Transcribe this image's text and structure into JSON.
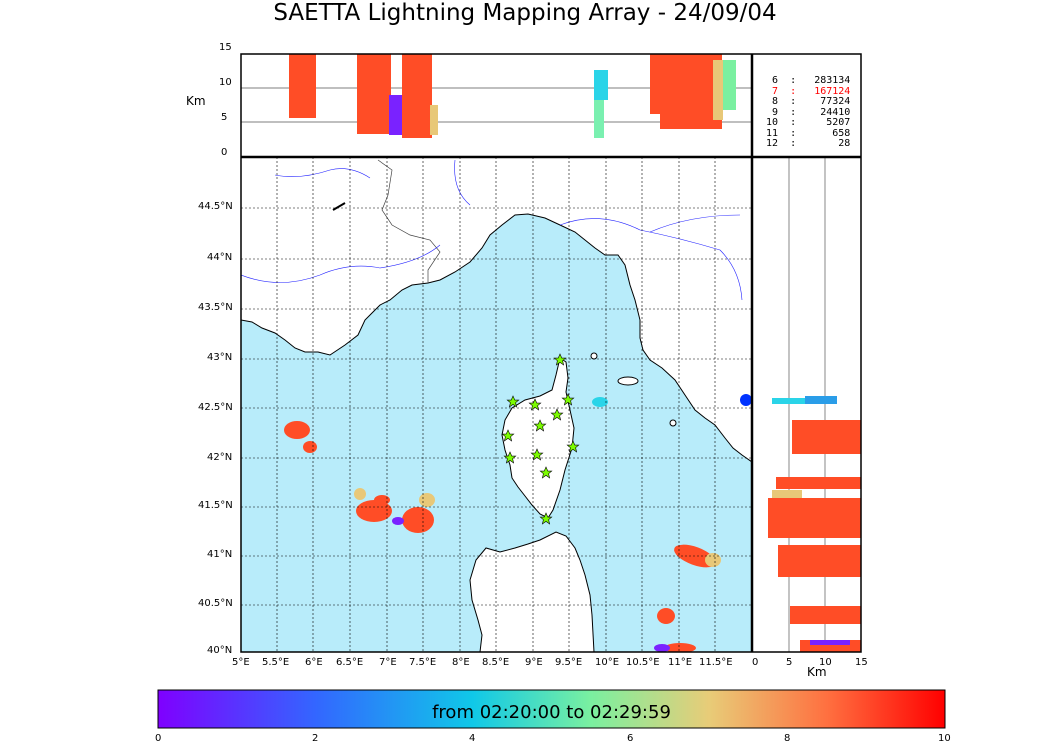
{
  "title": "SAETTA Lightning Mapping Array - 24/09/04",
  "alt_unit_label": "Km",
  "top_panel": {
    "alt_ticks": [
      "15",
      "10",
      "5",
      "0"
    ]
  },
  "side_panel": {
    "alt_ticks": [
      "0",
      "5",
      "10",
      "15"
    ]
  },
  "map": {
    "lat_ticks": [
      "44.5°N",
      "44°N",
      "43.5°N",
      "43°N",
      "42.5°N",
      "42°N",
      "41.5°N",
      "41°N",
      "40.5°N",
      "40°N"
    ],
    "lon_ticks": [
      "5°E",
      "5.5°E",
      "6°E",
      "6.5°E",
      "7°E",
      "7.5°E",
      "8°E",
      "8.5°E",
      "9°E",
      "9.5°E",
      "10°E",
      "10.5°E",
      "11°E",
      "11.5°E"
    ],
    "sea_color": "#b8ecfa",
    "station_marker": "star-icon",
    "station_color": "#7cfc00"
  },
  "station_counts": [
    {
      "stations": "6",
      "count": "283134",
      "highlight": false
    },
    {
      "stations": "7",
      "count": "167124",
      "highlight": true
    },
    {
      "stations": "8",
      "count": "77324",
      "highlight": false
    },
    {
      "stations": "9",
      "count": "24410",
      "highlight": false
    },
    {
      "stations": "10",
      "count": "5207",
      "highlight": false
    },
    {
      "stations": "11",
      "count": "658",
      "highlight": false
    },
    {
      "stations": "12",
      "count": "28",
      "highlight": false
    }
  ],
  "colorbar": {
    "label": "from 02:20:00 to 02:29:59",
    "ticks": [
      "0",
      "2",
      "4",
      "6",
      "8",
      "10"
    ],
    "colors": [
      "#7f00ff",
      "#0096e6",
      "#40f0c0",
      "#e8d070",
      "#ff8040",
      "#ff0000"
    ]
  }
}
